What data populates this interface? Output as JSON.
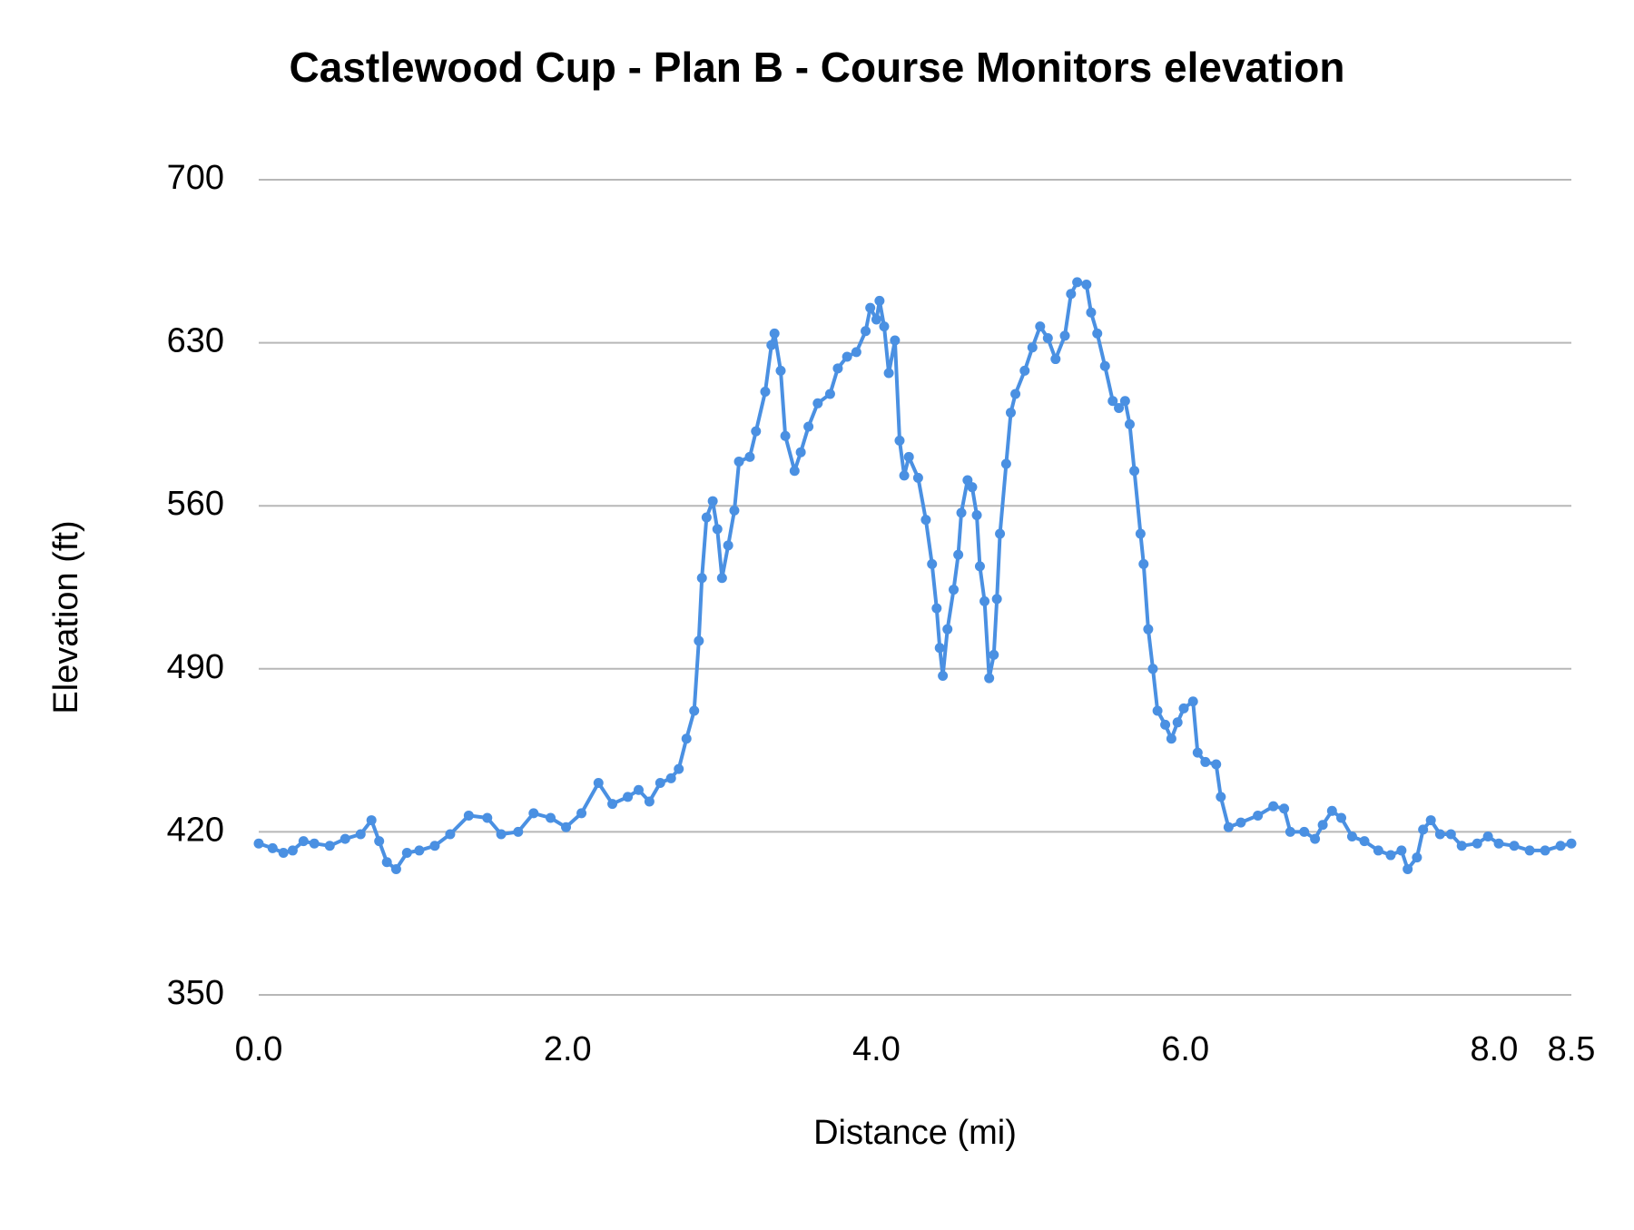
{
  "chart_data": {
    "type": "line",
    "title": "Castlewood Cup - Plan B - Course Monitors elevation",
    "x_label": "Distance (mi)",
    "y_label": "Elevation (ft)",
    "xlim": [
      0,
      8.5
    ],
    "xticks": [
      {
        "value": 0,
        "label": "0.0"
      },
      {
        "value": 2,
        "label": "2.0"
      },
      {
        "value": 4,
        "label": "4.0"
      },
      {
        "value": 6,
        "label": "6.0"
      },
      {
        "value": 8,
        "label": "8.0"
      },
      8.5
    ],
    "ylim": [
      350,
      700
    ],
    "yticks": [
      350,
      420,
      490,
      560,
      630,
      700
    ],
    "grid": true,
    "series": [
      {
        "color": "#4a90e2",
        "x": [
          0,
          0.09,
          0.16,
          0.22,
          0.29,
          0.36,
          0.46,
          0.56,
          0.66,
          0.73,
          0.78,
          0.83,
          0.89,
          0.96,
          1.04,
          1.14,
          1.24,
          1.36,
          1.48,
          1.57,
          1.68,
          1.78,
          1.89,
          1.99,
          2.09,
          2.2,
          2.29,
          2.39,
          2.46,
          2.53,
          2.6,
          2.67,
          2.72,
          2.77,
          2.82,
          2.85,
          2.87,
          2.9,
          2.94,
          2.97,
          3,
          3.04,
          3.08,
          3.11,
          3.18,
          3.22,
          3.28,
          3.32,
          3.34,
          3.38,
          3.41,
          3.47,
          3.51,
          3.56,
          3.62,
          3.7,
          3.75,
          3.81,
          3.87,
          3.93,
          3.96,
          4,
          4.02,
          4.05,
          4.08,
          4.12,
          4.15,
          4.18,
          4.21,
          4.27,
          4.32,
          4.36,
          4.39,
          4.41,
          4.43,
          4.46,
          4.5,
          4.53,
          4.55,
          4.59,
          4.62,
          4.65,
          4.67,
          4.7,
          4.73,
          4.76,
          4.78,
          4.8,
          4.84,
          4.87,
          4.9,
          4.96,
          5.01,
          5.06,
          5.11,
          5.16,
          5.22,
          5.26,
          5.3,
          5.36,
          5.39,
          5.43,
          5.48,
          5.53,
          5.57,
          5.61,
          5.64,
          5.67,
          5.71,
          5.73,
          5.76,
          5.79,
          5.82,
          5.87,
          5.91,
          5.95,
          5.99,
          6.05,
          6.08,
          6.13,
          6.2,
          6.23,
          6.28,
          6.36,
          6.47,
          6.57,
          6.64,
          6.68,
          6.77,
          6.84,
          6.89,
          6.95,
          7.01,
          7.08,
          7.16,
          7.25,
          7.33,
          7.4,
          7.44,
          7.5,
          7.54,
          7.59,
          7.65,
          7.72,
          7.79,
          7.89,
          7.96,
          8.03,
          8.13,
          8.23,
          8.33,
          8.43,
          8.5
        ],
        "values": [
          415,
          413,
          411,
          412,
          416,
          415,
          414,
          417,
          419,
          425,
          416,
          407,
          404,
          411,
          412,
          414,
          419,
          427,
          426,
          419,
          420,
          428,
          426,
          422,
          428,
          441,
          432,
          435,
          438,
          433,
          441,
          443,
          447,
          460,
          472,
          502,
          529,
          555,
          562,
          550,
          529,
          543,
          558,
          579,
          581,
          592,
          609,
          629,
          634,
          618,
          590,
          575,
          583,
          594,
          604,
          608,
          619,
          624,
          626,
          635,
          645,
          640,
          648,
          637,
          617,
          631,
          588,
          573,
          581,
          572,
          554,
          535,
          516,
          499,
          487,
          507,
          524,
          539,
          557,
          571,
          568,
          556,
          534,
          519,
          486,
          496,
          520,
          548,
          578,
          600,
          608,
          618,
          628,
          637,
          632,
          623,
          633,
          651,
          656,
          655,
          643,
          634,
          620,
          605,
          602,
          605,
          595,
          575,
          548,
          535,
          507,
          490,
          472,
          466,
          460,
          467,
          473,
          476,
          454,
          450,
          449,
          435,
          422,
          424,
          427,
          431,
          430,
          420,
          420,
          417,
          423,
          429,
          426,
          418,
          416,
          412,
          410,
          412,
          404,
          409,
          421,
          425,
          419,
          419,
          414,
          415,
          418,
          415,
          414,
          412,
          412,
          414,
          415
        ]
      }
    ]
  }
}
